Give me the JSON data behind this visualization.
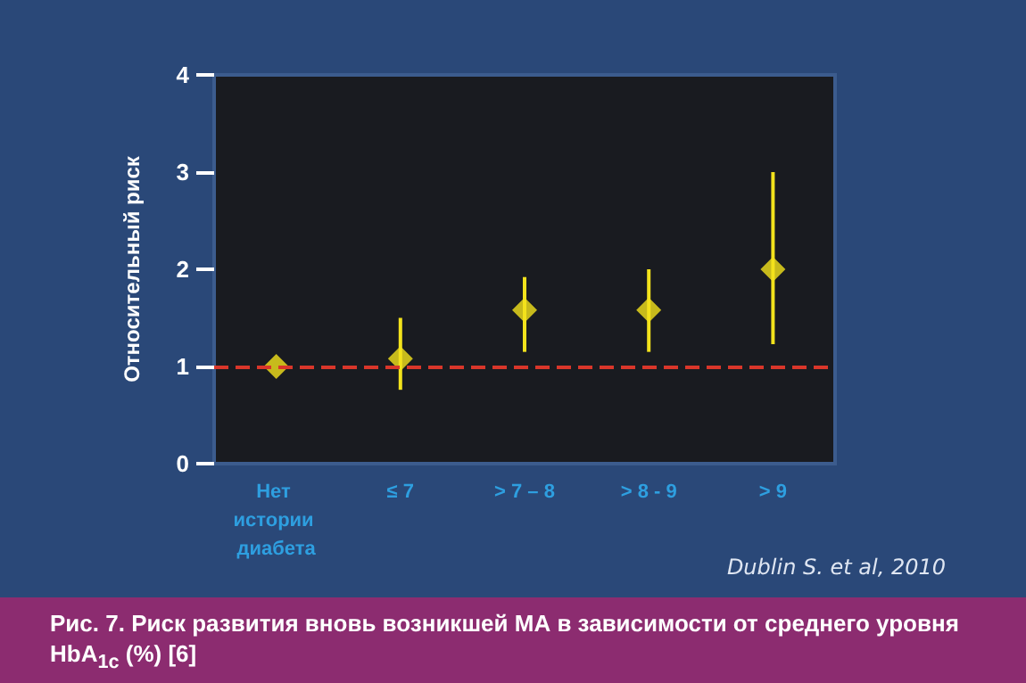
{
  "chart_data": {
    "type": "scatter",
    "title": "Рис. 7. Риск развития вновь возникшей МА в зависимости от среднего уровня HbA$_{1c}$ (%) [6]",
    "ylabel": "Относительный риск",
    "annotations": [
      "Dublin S. et al, 2010"
    ],
    "categories": [
      "Нет истории диабета",
      "≤ 7",
      "> 7 – 8",
      "> 8 - 9",
      "> 9"
    ],
    "series": [
      {
        "color": "#f2e21c",
        "values": [
          1.0,
          1.08,
          1.58,
          1.58,
          2.0
        ],
        "errors": [
          null,
          [
            0.76,
            1.5
          ],
          [
            1.15,
            1.92
          ],
          [
            1.15,
            2.0
          ],
          [
            1.23,
            3.0
          ]
        ]
      }
    ],
    "ylim": [
      0,
      4
    ],
    "yticks": [
      0,
      1,
      2,
      3,
      4
    ],
    "ref_lines": [
      {
        "axis": "y",
        "value": 1,
        "color": "#d9362a",
        "line_style": "dashed"
      }
    ],
    "marker": "diamond",
    "grid": false,
    "legend": false
  }
}
